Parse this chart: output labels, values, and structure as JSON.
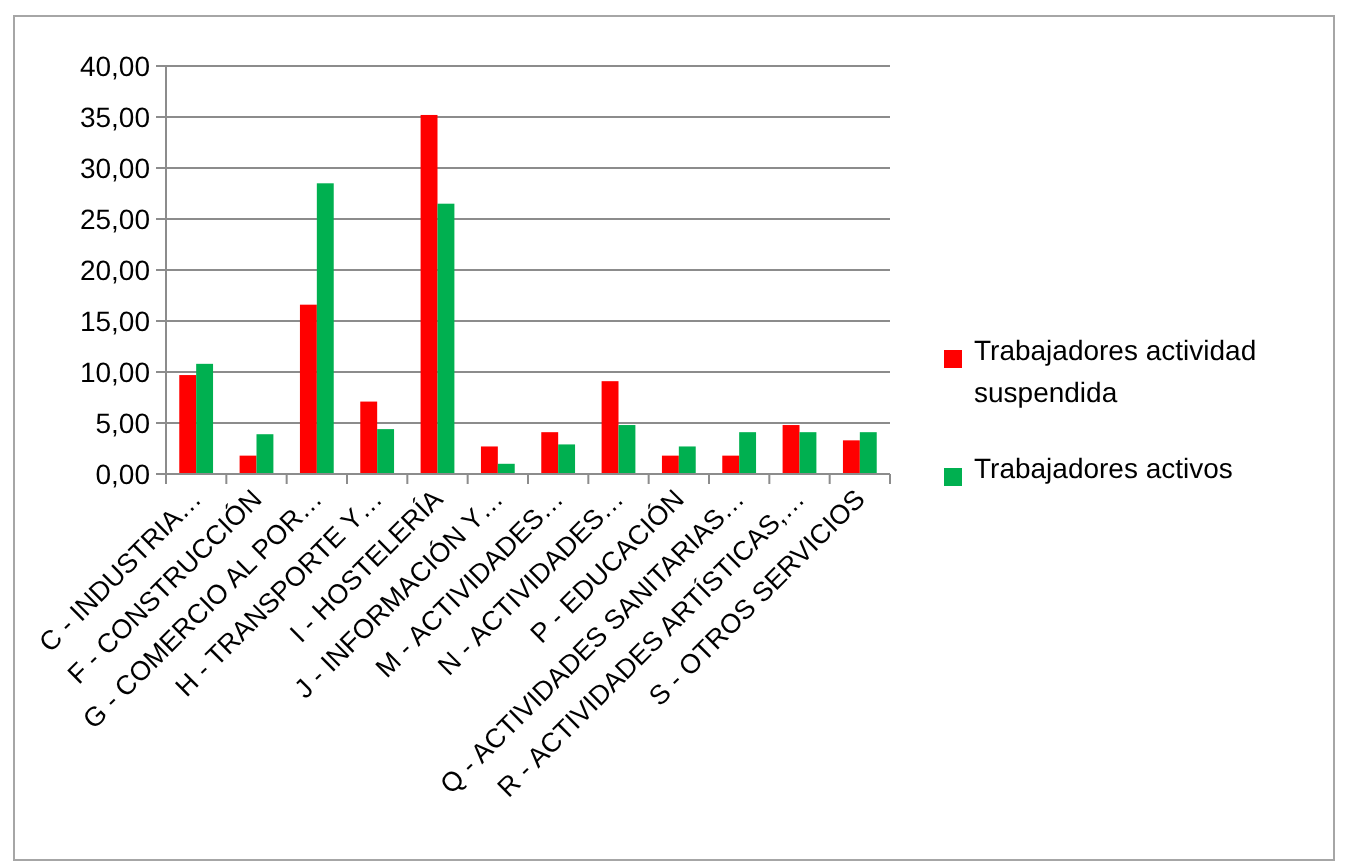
{
  "chart_data": {
    "type": "bar",
    "categories": [
      "C - INDUSTRIA…",
      "F - CONSTRUCCIÓN",
      "G - COMERCIO AL POR…",
      "H - TRANSPORTE Y…",
      "I - HOSTELERÍA",
      "J - INFORMACIÓN Y…",
      "M - ACTIVIDADES…",
      "N - ACTIVIDADES…",
      "P - EDUCACIÓN",
      "Q - ACTIVIDADES SANITARIAS…",
      "R - ACTIVIDADES ARTÍSTICAS,…",
      "S - OTROS SERVICIOS"
    ],
    "series": [
      {
        "name": "Trabajadores actividad suspendida",
        "color": "#ff0000",
        "values": [
          9.7,
          1.8,
          16.6,
          7.1,
          35.2,
          2.7,
          4.1,
          9.1,
          1.8,
          1.8,
          4.8,
          3.3
        ]
      },
      {
        "name": "Trabajadores activos",
        "color": "#00b050",
        "values": [
          10.8,
          3.9,
          28.5,
          4.4,
          26.5,
          1.0,
          2.9,
          4.8,
          2.7,
          4.1,
          4.1,
          4.1
        ]
      }
    ],
    "ylim": [
      0,
      40
    ],
    "yticks": [
      {
        "value": 0,
        "label": "0,00"
      },
      {
        "value": 5,
        "label": "5,00"
      },
      {
        "value": 10,
        "label": "10,00"
      },
      {
        "value": 15,
        "label": "15,00"
      },
      {
        "value": 20,
        "label": "20,00"
      },
      {
        "value": 25,
        "label": "25,00"
      },
      {
        "value": 30,
        "label": "30,00"
      },
      {
        "value": 35,
        "label": "35,00"
      },
      {
        "value": 40,
        "label": "40,00"
      }
    ],
    "grid": "y",
    "legend": "right"
  }
}
